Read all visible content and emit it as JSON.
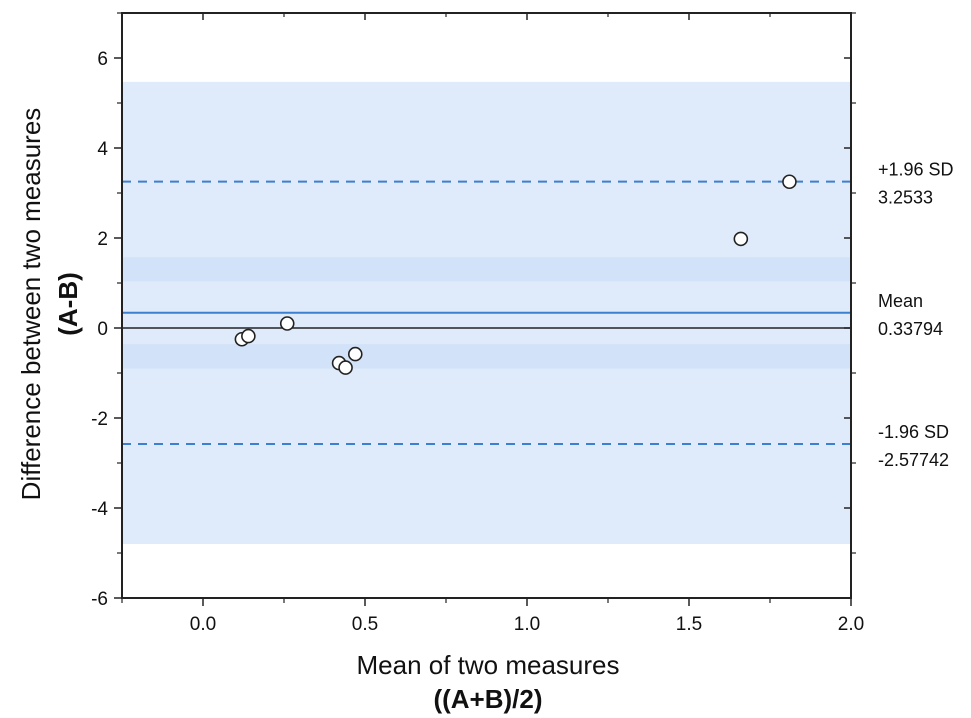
{
  "chart_data": {
    "type": "scatter",
    "title": "",
    "xlabel": "Mean of two measures",
    "xlabel_sub": "((A+B)/2)",
    "ylabel": "Difference between two measures",
    "ylabel_sub": "(A-B)",
    "xlim": [
      -0.25,
      2.0
    ],
    "ylim": [
      -6,
      7
    ],
    "x_ticks": [
      0.0,
      0.5,
      1.0,
      1.5,
      2.0
    ],
    "x_tick_labels": [
      "0.0",
      "0.5",
      "1.0",
      "1.5",
      "2.0"
    ],
    "y_ticks": [
      -6,
      -4,
      -2,
      0,
      2,
      4,
      6
    ],
    "y_tick_labels": [
      "-6",
      "-4",
      "-2",
      "0",
      "2",
      "4",
      "6"
    ],
    "grid": false,
    "points": [
      {
        "x": 0.12,
        "y": -0.25
      },
      {
        "x": 0.14,
        "y": -0.18
      },
      {
        "x": 0.26,
        "y": 0.1
      },
      {
        "x": 0.42,
        "y": -0.78
      },
      {
        "x": 0.44,
        "y": -0.88
      },
      {
        "x": 0.47,
        "y": -0.58
      },
      {
        "x": 1.66,
        "y": 1.98
      },
      {
        "x": 1.81,
        "y": 3.25
      }
    ],
    "mean": {
      "value": 0.33794,
      "label": "Mean",
      "value_label": "0.33794"
    },
    "upper_loa": {
      "value": 3.2533,
      "label": "+1.96 SD",
      "value_label": "3.2533"
    },
    "lower_loa": {
      "value": -2.57742,
      "label": "-1.96 SD",
      "value_label": "-2.57742"
    },
    "confidence_bands": [
      {
        "for": "upper_loa",
        "y_from": 1.04,
        "y_to": 5.47
      },
      {
        "for": "mean",
        "y_from": -0.9,
        "y_to": 1.57
      },
      {
        "for": "lower_loa",
        "y_from": -4.8,
        "y_to": -0.36
      }
    ],
    "colors": {
      "band": "#c9dcf6",
      "mean_line": "#3d7fd0",
      "loa_line": "#3d7fd0",
      "zero_line": "#222222",
      "axis": "#222222",
      "point_fill": "#ffffff",
      "point_stroke": "#222222"
    }
  }
}
